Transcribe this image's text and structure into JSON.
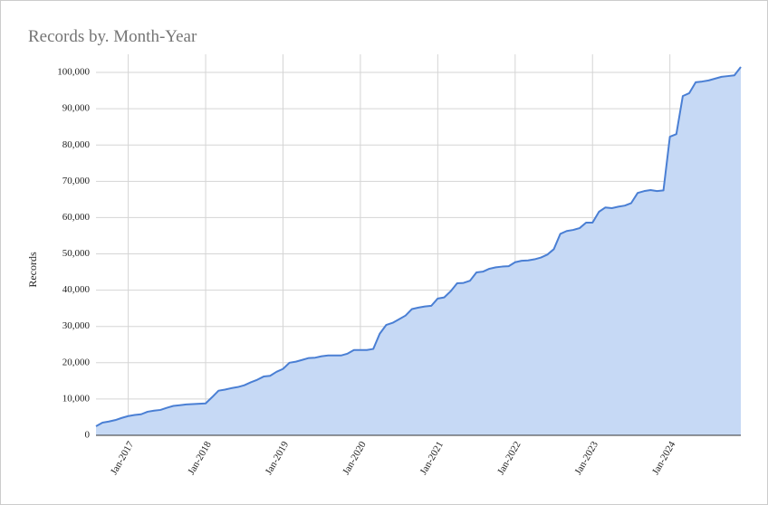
{
  "chart_data": {
    "type": "area",
    "title": "Records by. Month-Year",
    "y_label": "Records",
    "categories": [
      null,
      null,
      null,
      null,
      null,
      "Jan-2017",
      null,
      null,
      null,
      null,
      null,
      null,
      null,
      null,
      null,
      null,
      null,
      "Jan-2018",
      null,
      null,
      null,
      null,
      null,
      null,
      null,
      null,
      null,
      null,
      null,
      "Jan-2019",
      null,
      null,
      null,
      null,
      null,
      null,
      null,
      null,
      null,
      null,
      null,
      "Jan-2020",
      null,
      null,
      null,
      null,
      null,
      null,
      null,
      null,
      null,
      null,
      null,
      "Jan-2021",
      null,
      null,
      null,
      null,
      null,
      null,
      null,
      null,
      null,
      null,
      null,
      "Jan-2022",
      null,
      null,
      null,
      null,
      null,
      null,
      null,
      null,
      null,
      null,
      null,
      "Jan-2023",
      null,
      null,
      null,
      null,
      null,
      null,
      null,
      null,
      null,
      null,
      null,
      "Jan-2024",
      null,
      null,
      null,
      null,
      null,
      null,
      null,
      null,
      null,
      null,
      null
    ],
    "values": [
      2500,
      3500,
      3800,
      4200,
      4800,
      5300,
      5600,
      5800,
      6500,
      6800,
      7000,
      7600,
      8100,
      8300,
      8500,
      8600,
      8700,
      8800,
      10500,
      12300,
      12600,
      13000,
      13300,
      13800,
      14600,
      15300,
      16200,
      16400,
      17500,
      18300,
      20000,
      20300,
      20800,
      21300,
      21400,
      21800,
      22000,
      22000,
      22000,
      22500,
      23500,
      23500,
      23500,
      23800,
      28000,
      30400,
      31000,
      32000,
      33000,
      34800,
      35200,
      35500,
      35700,
      37700,
      38000,
      39700,
      41900,
      42000,
      42600,
      44900,
      45100,
      45900,
      46300,
      46500,
      46600,
      47700,
      48100,
      48200,
      48500,
      49000,
      49800,
      51300,
      55500,
      56300,
      56600,
      57100,
      58600,
      58600,
      61600,
      62800,
      62600,
      63000,
      63300,
      64000,
      66800,
      67300,
      67600,
      67300,
      67500,
      82300,
      83000,
      93500,
      94300,
      97300,
      97500,
      97800,
      98300,
      98800,
      99000,
      99200,
      101500
    ],
    "color": "#4a7fd4",
    "fill_color": "#c6d9f5",
    "ylim": [
      0,
      105000
    ],
    "yticks": [
      0,
      {
        "value": 10000,
        "label": "10,000"
      },
      {
        "value": 20000,
        "label": "20,000"
      },
      {
        "value": 30000,
        "label": "30,000"
      },
      {
        "value": 40000,
        "label": "40,000"
      },
      {
        "value": 50000,
        "label": "50,000"
      },
      {
        "value": 60000,
        "label": "60,000"
      },
      {
        "value": 70000,
        "label": "70,000"
      },
      {
        "value": 80000,
        "label": "80,000"
      },
      {
        "value": 90000,
        "label": "90,000"
      },
      {
        "value": 100000,
        "label": "100,000"
      }
    ],
    "grid": true
  }
}
